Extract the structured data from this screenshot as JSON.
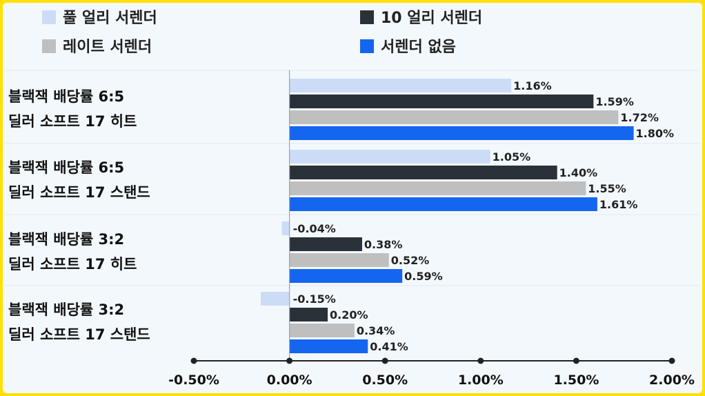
{
  "chart_data": {
    "type": "bar",
    "orientation": "horizontal",
    "categories": [
      [
        "블랙잭 배당률 6:5",
        "딜러 소프트 17 히트"
      ],
      [
        "블랙잭 배당률 6:5",
        "딜러 소프트 17 스탠드"
      ],
      [
        "블랙잭 배당률 3:2",
        "딜러 소프트 17 히트"
      ],
      [
        "블랙잭 배당률 3:2",
        "딜러 소프트 17 스탠드"
      ]
    ],
    "series": [
      {
        "name": "풀 얼리 서렌더",
        "color": "#ccdcf6",
        "values": [
          1.16,
          1.05,
          -0.04,
          -0.15
        ],
        "labels": [
          "1.16%",
          "1.05%",
          "-0.04%",
          "-0.15%"
        ]
      },
      {
        "name": "10 얼리 서렌더",
        "color": "#2a3239",
        "values": [
          1.59,
          1.4,
          0.38,
          0.2
        ],
        "labels": [
          "1.59%",
          "1.40%",
          "0.38%",
          "0.20%"
        ]
      },
      {
        "name": "레이트 서렌더",
        "color": "#bfbfbf",
        "values": [
          1.72,
          1.55,
          0.52,
          0.34
        ],
        "labels": [
          "1.72%",
          "1.55%",
          "0.52%",
          "0.34%"
        ]
      },
      {
        "name": "서렌더 없음",
        "color": "#1466f0",
        "values": [
          1.8,
          1.61,
          0.59,
          0.41
        ],
        "labels": [
          "1.80%",
          "1.61%",
          "0.59%",
          "0.41%"
        ]
      }
    ],
    "x_ticks": [
      {
        "value": -0.5,
        "label": "-0.50%"
      },
      {
        "value": 0,
        "label": "0.00%"
      },
      {
        "value": 0.5,
        "label": "0.50%"
      },
      {
        "value": 1.0,
        "label": "1.00%"
      },
      {
        "value": 1.5,
        "label": "1.50%"
      },
      {
        "value": 2.0,
        "label": "2.00%"
      }
    ],
    "xlim": [
      -0.5,
      2.0
    ],
    "legend_position": "top",
    "grid": false
  }
}
